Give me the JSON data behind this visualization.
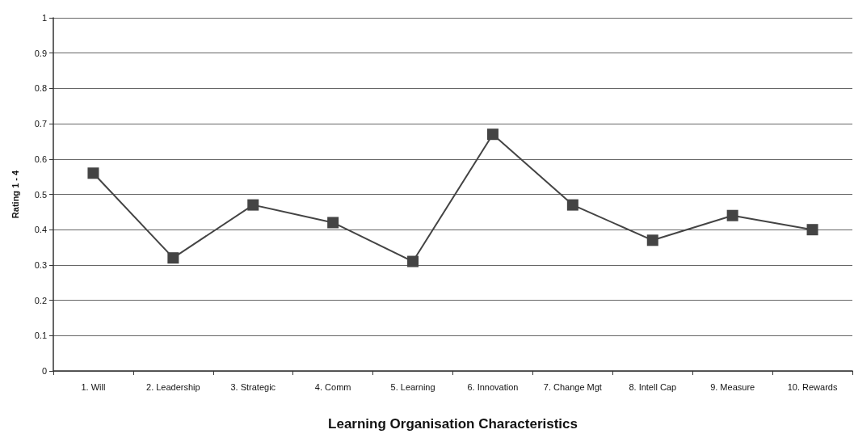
{
  "chart_data": {
    "type": "line",
    "xlabel": "Learning Organisation Characteristics",
    "ylabel": "Rating 1 - 4",
    "categories": [
      "1. Will",
      "2. Leadership",
      "3. Strategic",
      "4. Comm",
      "5. Learning",
      "6. Innovation",
      "7. Change Mgt",
      "8. Intell Cap",
      "9. Measure",
      "10. Rewards"
    ],
    "series": [
      {
        "color": "#444444",
        "values": [
          0.56,
          0.32,
          0.47,
          0.42,
          0.31,
          0.67,
          0.47,
          0.37,
          0.44,
          0.4
        ]
      }
    ],
    "ylim": [
      0,
      1
    ],
    "yticks": [
      0,
      0.1,
      0.2,
      0.3,
      0.4,
      0.5,
      0.6,
      0.7,
      0.8,
      0.9,
      1
    ],
    "grid": "y",
    "marker": "square",
    "line_style": "solid"
  }
}
